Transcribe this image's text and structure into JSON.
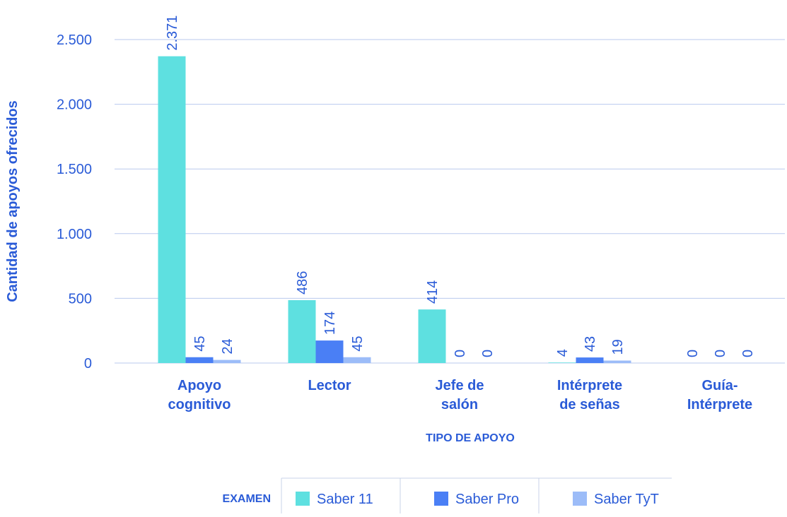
{
  "chart_data": {
    "type": "bar",
    "y_label": "Cantidad de apoyos ofrecidos",
    "x_label": "TIPO DE APOYO",
    "legend_title": "EXAMEN",
    "categories": [
      [
        "Apoyo",
        "cognitivo"
      ],
      [
        "Lector"
      ],
      [
        "Jefe de",
        "salón"
      ],
      [
        "Intérprete",
        "de señas"
      ],
      [
        "Guía-",
        "Intérprete"
      ]
    ],
    "series": [
      {
        "name": "Saber 11",
        "color": "#5ee0e0",
        "values": [
          2371,
          486,
          414,
          4,
          0
        ],
        "value_labels": [
          "2.371",
          "486",
          "414",
          "4",
          "0"
        ]
      },
      {
        "name": "Saber Pro",
        "color": "#4a7ff5",
        "values": [
          45,
          174,
          0,
          43,
          0
        ]
      },
      {
        "name": "Saber TyT",
        "color": "#9cbcf8",
        "values": [
          24,
          45,
          0,
          19,
          0
        ]
      }
    ],
    "ylim": [
      0,
      2500
    ],
    "yticks": [
      0,
      500,
      {
        "value": 1000,
        "label": "1.000"
      },
      {
        "value": 1500,
        "label": "1.500"
      },
      {
        "value": 2000,
        "label": "2.000"
      },
      {
        "value": 2500,
        "label": "2.500"
      }
    ],
    "grid": true
  }
}
